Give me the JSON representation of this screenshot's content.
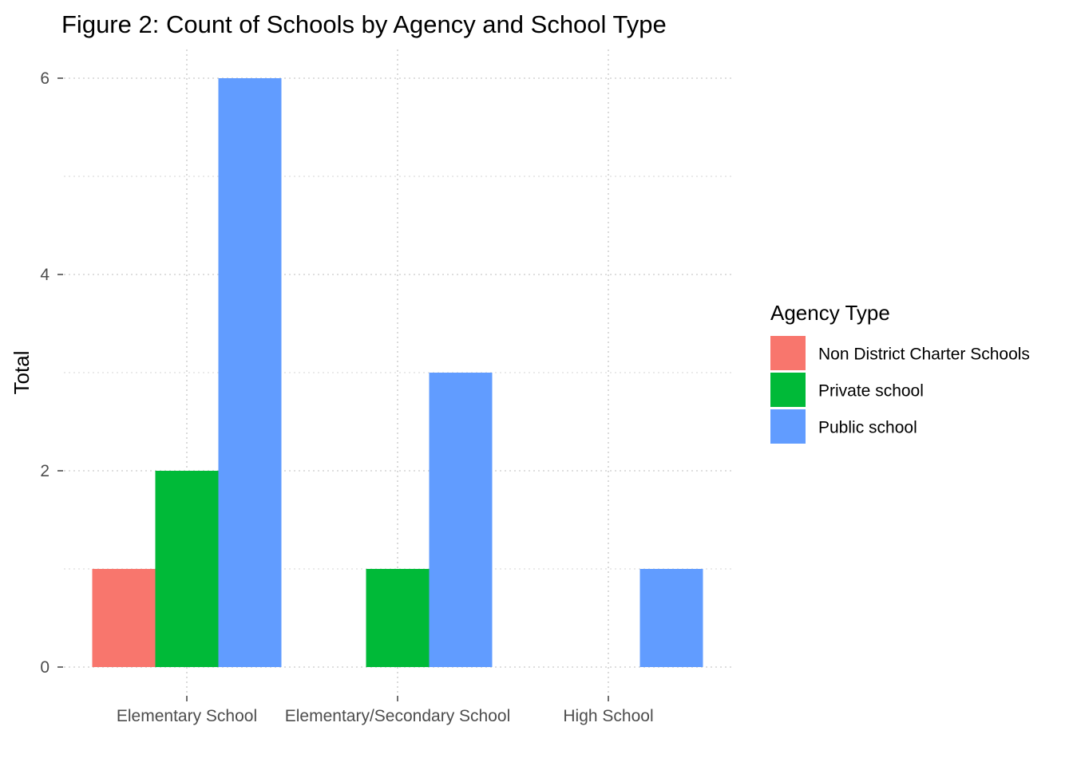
{
  "chart_data": {
    "type": "bar",
    "title": "Figure 2: Count of Schools by Agency and School Type",
    "xlabel": "",
    "ylabel": "Total",
    "categories": [
      "Elementary School",
      "Elementary/Secondary School",
      "High School"
    ],
    "series": [
      {
        "name": "Non District Charter Schools",
        "color": "#F8766D",
        "values": [
          1,
          0,
          0
        ]
      },
      {
        "name": "Private school",
        "color": "#00BA38",
        "values": [
          2,
          1,
          0
        ]
      },
      {
        "name": "Public school",
        "color": "#619CFF",
        "values": [
          6,
          3,
          1
        ]
      }
    ],
    "ylim": [
      0,
      6
    ],
    "yticks": [
      0,
      2,
      4,
      6
    ],
    "grid": true,
    "legend": {
      "title": "Agency Type",
      "position": "right"
    }
  }
}
